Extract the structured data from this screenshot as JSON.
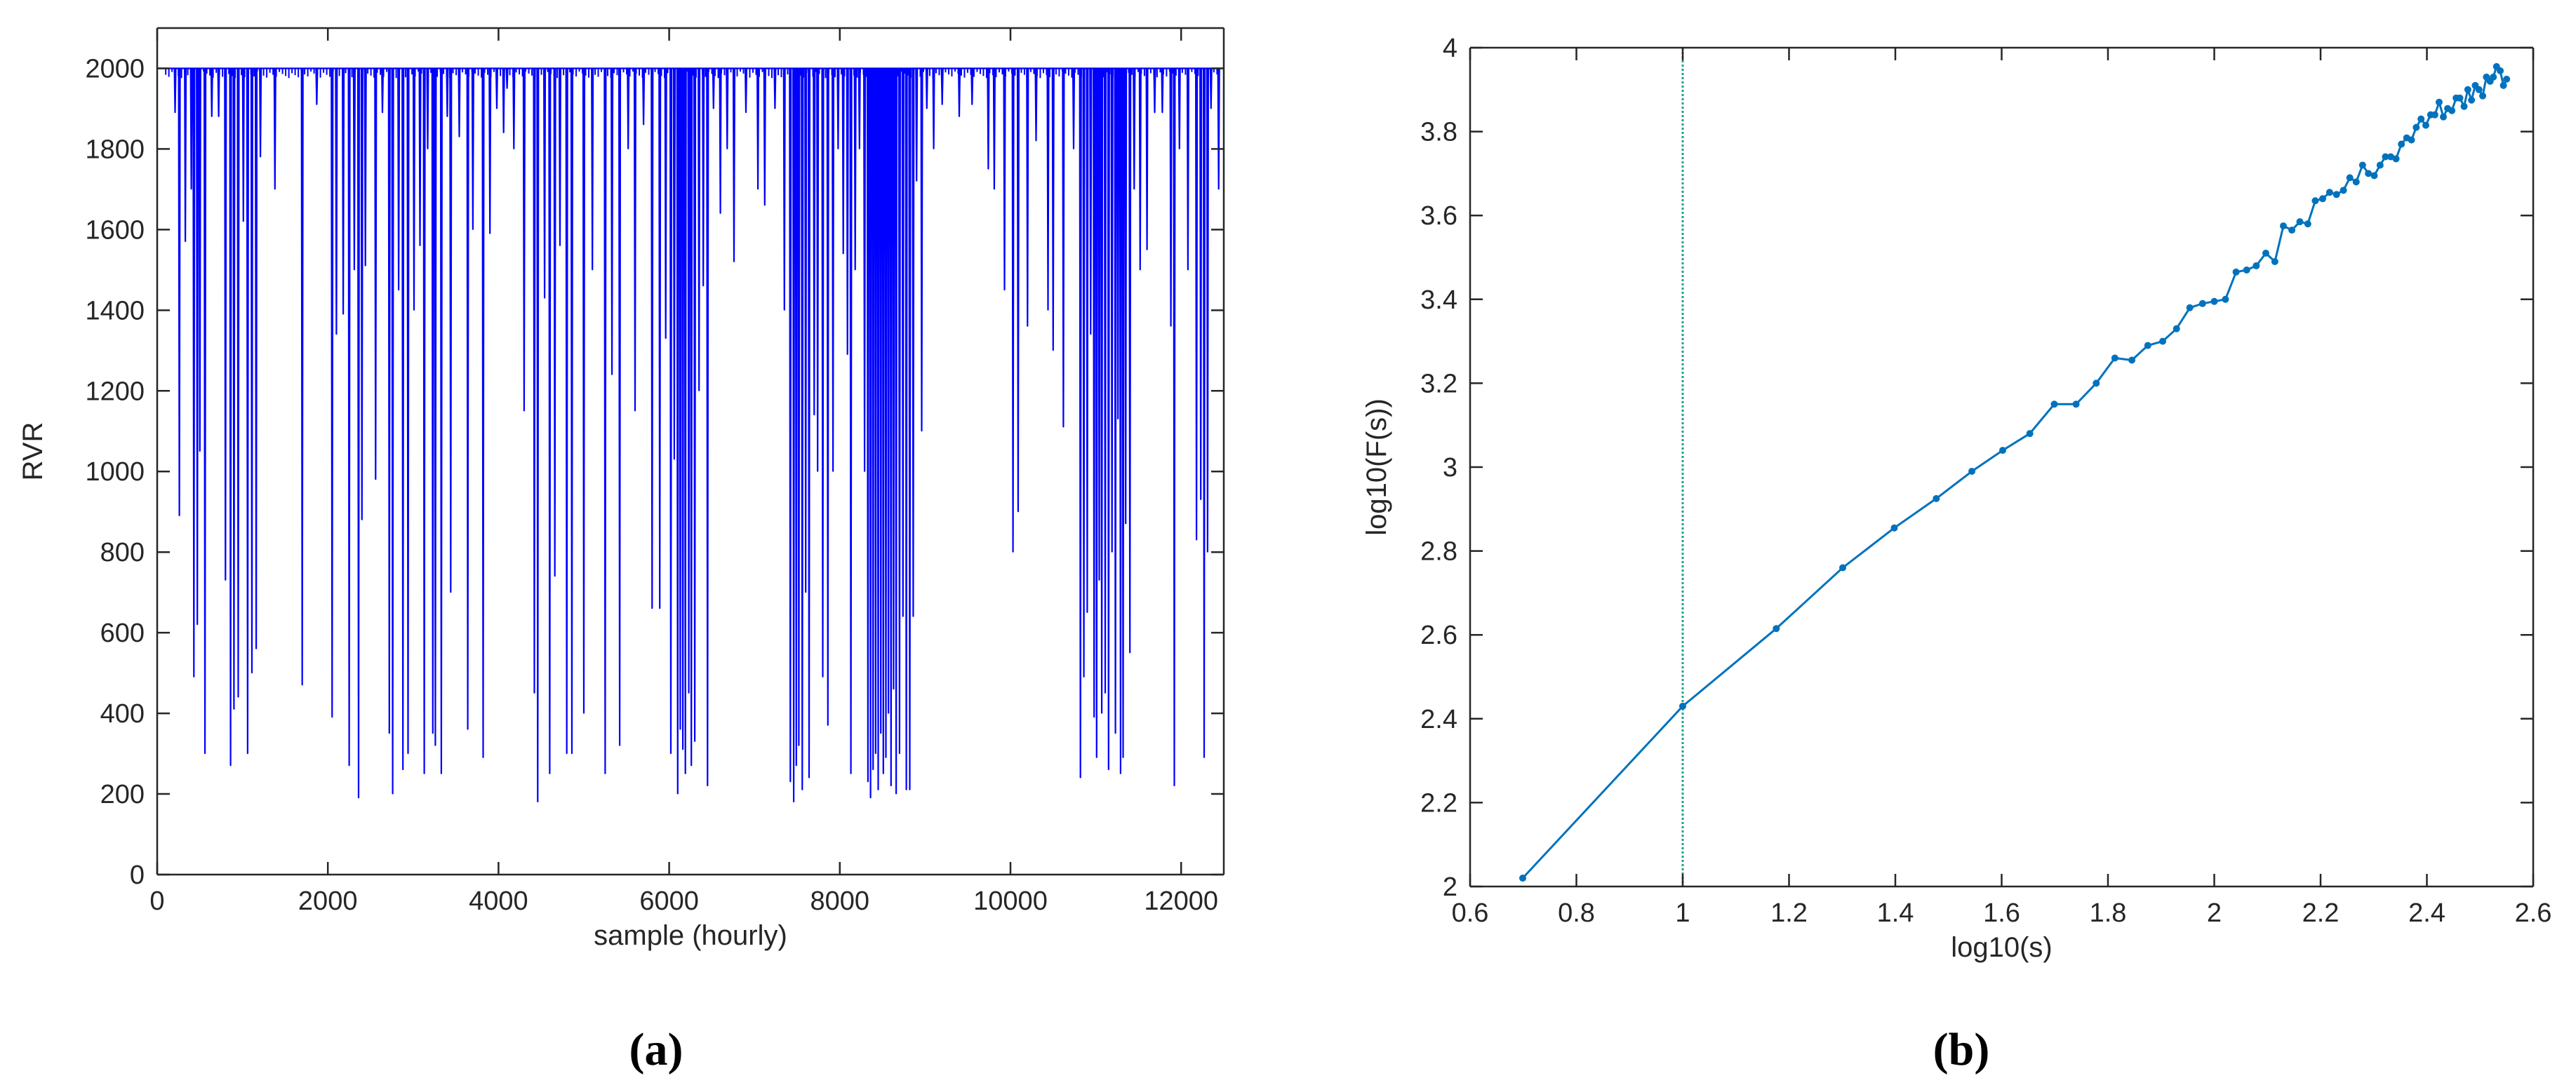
{
  "colors": {
    "axis": "#262626",
    "series_a": "#0000ff",
    "series_b": "#0072bd",
    "vline": "#1fa089"
  },
  "chart_data": [
    {
      "panel": "(a)",
      "type": "line",
      "xlabel": "sample (hourly)",
      "ylabel": "RVR",
      "xlim": [
        0,
        12500
      ],
      "ylim": [
        0,
        2100
      ],
      "xticks": [
        0,
        2000,
        4000,
        6000,
        8000,
        10000,
        12000
      ],
      "yticks": [
        0,
        200,
        400,
        600,
        800,
        1000,
        1200,
        1400,
        1600,
        1800,
        2000
      ],
      "grid": false,
      "baseline": 2000,
      "series": [
        {
          "dips": [
            [
              210,
              1890
            ],
            [
              260,
              890
            ],
            [
              330,
              1570
            ],
            [
              400,
              1700
            ],
            [
              430,
              490
            ],
            [
              470,
              620
            ],
            [
              500,
              1050
            ],
            [
              560,
              300
            ],
            [
              640,
              1880
            ],
            [
              720,
              1880
            ],
            [
              800,
              730
            ],
            [
              860,
              270
            ],
            [
              900,
              410
            ],
            [
              950,
              440
            ],
            [
              1010,
              1620
            ],
            [
              1060,
              300
            ],
            [
              1110,
              500
            ],
            [
              1160,
              560
            ],
            [
              1210,
              1780
            ],
            [
              1380,
              1700
            ],
            [
              1700,
              470
            ],
            [
              1870,
              1910
            ],
            [
              2050,
              390
            ],
            [
              2100,
              1340
            ],
            [
              2180,
              1390
            ],
            [
              2250,
              270
            ],
            [
              2310,
              1500
            ],
            [
              2360,
              190
            ],
            [
              2400,
              880
            ],
            [
              2440,
              1510
            ],
            [
              2560,
              980
            ],
            [
              2640,
              1890
            ],
            [
              2720,
              350
            ],
            [
              2760,
              200
            ],
            [
              2830,
              1450
            ],
            [
              2880,
              260
            ],
            [
              2940,
              300
            ],
            [
              3010,
              1400
            ],
            [
              3080,
              1560
            ],
            [
              3130,
              250
            ],
            [
              3170,
              1800
            ],
            [
              3230,
              350
            ],
            [
              3260,
              320
            ],
            [
              3330,
              250
            ],
            [
              3400,
              1880
            ],
            [
              3440,
              700
            ],
            [
              3540,
              1830
            ],
            [
              3640,
              360
            ],
            [
              3700,
              1600
            ],
            [
              3820,
              290
            ],
            [
              3900,
              1590
            ],
            [
              3980,
              1900
            ],
            [
              4060,
              1840
            ],
            [
              4100,
              1950
            ],
            [
              4180,
              1800
            ],
            [
              4300,
              1150
            ],
            [
              4420,
              450
            ],
            [
              4460,
              180
            ],
            [
              4540,
              1430
            ],
            [
              4600,
              250
            ],
            [
              4660,
              740
            ],
            [
              4720,
              1560
            ],
            [
              4800,
              300
            ],
            [
              4860,
              300
            ],
            [
              5000,
              400
            ],
            [
              5100,
              1500
            ],
            [
              5250,
              250
            ],
            [
              5330,
              1240
            ],
            [
              5420,
              320
            ],
            [
              5520,
              1800
            ],
            [
              5600,
              1150
            ],
            [
              5700,
              1860
            ],
            [
              5800,
              660
            ],
            [
              5890,
              660
            ],
            [
              5960,
              1330
            ],
            [
              6020,
              300
            ],
            [
              6060,
              1030
            ],
            [
              6100,
              200
            ],
            [
              6130,
              360
            ],
            [
              6160,
              310
            ],
            [
              6190,
              250
            ],
            [
              6230,
              450
            ],
            [
              6260,
              270
            ],
            [
              6300,
              330
            ],
            [
              6350,
              1200
            ],
            [
              6400,
              1460
            ],
            [
              6450,
              220
            ],
            [
              6520,
              1900
            ],
            [
              6600,
              1640
            ],
            [
              6680,
              1800
            ],
            [
              6760,
              1520
            ],
            [
              6900,
              1890
            ],
            [
              7040,
              1700
            ],
            [
              7120,
              1660
            ],
            [
              7240,
              1900
            ],
            [
              7350,
              1400
            ],
            [
              7420,
              230
            ],
            [
              7460,
              180
            ],
            [
              7490,
              270
            ],
            [
              7520,
              320
            ],
            [
              7560,
              210
            ],
            [
              7600,
              700
            ],
            [
              7640,
              240
            ],
            [
              7700,
              1140
            ],
            [
              7740,
              1000
            ],
            [
              7800,
              490
            ],
            [
              7860,
              370
            ],
            [
              7920,
              1000
            ],
            [
              7980,
              1800
            ],
            [
              8040,
              1540
            ],
            [
              8090,
              1290
            ],
            [
              8130,
              250
            ],
            [
              8180,
              1500
            ],
            [
              8230,
              1800
            ],
            [
              8290,
              1000
            ],
            [
              8330,
              230
            ],
            [
              8360,
              190
            ],
            [
              8390,
              260
            ],
            [
              8420,
              300
            ],
            [
              8450,
              210
            ],
            [
              8480,
              350
            ],
            [
              8510,
              250
            ],
            [
              8540,
              290
            ],
            [
              8570,
              400
            ],
            [
              8600,
              220
            ],
            [
              8630,
              460
            ],
            [
              8660,
              200
            ],
            [
              8700,
              300
            ],
            [
              8740,
              640
            ],
            [
              8780,
              210
            ],
            [
              8820,
              210
            ],
            [
              8860,
              640
            ],
            [
              8900,
              1720
            ],
            [
              8960,
              1100
            ],
            [
              9020,
              1900
            ],
            [
              9100,
              1800
            ],
            [
              9200,
              1910
            ],
            [
              9400,
              1880
            ],
            [
              9550,
              1910
            ],
            [
              9740,
              1750
            ],
            [
              9810,
              1700
            ],
            [
              9930,
              1450
            ],
            [
              10030,
              800
            ],
            [
              10090,
              900
            ],
            [
              10200,
              1360
            ],
            [
              10300,
              1820
            ],
            [
              10440,
              1400
            ],
            [
              10500,
              1300
            ],
            [
              10620,
              1110
            ],
            [
              10740,
              1800
            ],
            [
              10820,
              240
            ],
            [
              10860,
              490
            ],
            [
              10900,
              650
            ],
            [
              10940,
              1340
            ],
            [
              10980,
              390
            ],
            [
              11010,
              290
            ],
            [
              11040,
              730
            ],
            [
              11070,
              400
            ],
            [
              11110,
              450
            ],
            [
              11150,
              260
            ],
            [
              11190,
              800
            ],
            [
              11230,
              350
            ],
            [
              11260,
              1130
            ],
            [
              11290,
              250
            ],
            [
              11320,
              290
            ],
            [
              11350,
              870
            ],
            [
              11400,
              550
            ],
            [
              11450,
              1700
            ],
            [
              11520,
              1500
            ],
            [
              11600,
              1550
            ],
            [
              11690,
              1890
            ],
            [
              11780,
              1890
            ],
            [
              11880,
              1360
            ],
            [
              11920,
              220
            ],
            [
              11980,
              1800
            ],
            [
              12080,
              1500
            ],
            [
              12180,
              830
            ],
            [
              12230,
              930
            ],
            [
              12270,
              290
            ],
            [
              12310,
              800
            ],
            [
              12350,
              1900
            ],
            [
              12440,
              1700
            ]
          ]
        }
      ]
    },
    {
      "panel": "(b)",
      "type": "line",
      "xlabel": "log10(s)",
      "ylabel": "log10(F(s))",
      "xlim": [
        0.6,
        2.6
      ],
      "ylim": [
        2,
        4
      ],
      "xticks": [
        "0.6",
        "0.8",
        "1",
        "1.2",
        "1.4",
        "1.6",
        "1.8",
        "2",
        "2.2",
        "2.4",
        "2.6"
      ],
      "yticks": [
        "2",
        "2.2",
        "2.4",
        "2.6",
        "2.8",
        "3",
        "3.2",
        "3.4",
        "3.6",
        "3.8",
        "4"
      ],
      "grid": false,
      "vline_x": 1.0,
      "series": [
        {
          "points": [
            [
              0.699,
              2.02
            ],
            [
              1.0,
              2.43
            ],
            [
              1.176,
              2.615
            ],
            [
              1.301,
              2.76
            ],
            [
              1.398,
              2.855
            ],
            [
              1.477,
              2.925
            ],
            [
              1.544,
              2.99
            ],
            [
              1.602,
              3.04
            ],
            [
              1.653,
              3.08
            ],
            [
              1.699,
              3.15
            ],
            [
              1.74,
              3.15
            ],
            [
              1.778,
              3.2
            ],
            [
              1.813,
              3.26
            ],
            [
              1.845,
              3.255
            ],
            [
              1.875,
              3.29
            ],
            [
              1.903,
              3.3
            ],
            [
              1.929,
              3.33
            ],
            [
              1.954,
              3.38
            ],
            [
              1.978,
              3.39
            ],
            [
              2.0,
              3.395
            ],
            [
              2.021,
              3.4
            ],
            [
              2.041,
              3.465
            ],
            [
              2.061,
              3.47
            ],
            [
              2.079,
              3.48
            ],
            [
              2.097,
              3.51
            ],
            [
              2.114,
              3.49
            ],
            [
              2.13,
              3.575
            ],
            [
              2.146,
              3.565
            ],
            [
              2.161,
              3.585
            ],
            [
              2.176,
              3.58
            ],
            [
              2.19,
              3.635
            ],
            [
              2.204,
              3.64
            ],
            [
              2.217,
              3.655
            ],
            [
              2.23,
              3.65
            ],
            [
              2.243,
              3.66
            ],
            [
              2.255,
              3.69
            ],
            [
              2.267,
              3.68
            ],
            [
              2.279,
              3.72
            ],
            [
              2.29,
              3.7
            ],
            [
              2.301,
              3.695
            ],
            [
              2.312,
              3.72
            ],
            [
              2.322,
              3.74
            ],
            [
              2.332,
              3.74
            ],
            [
              2.342,
              3.735
            ],
            [
              2.352,
              3.77
            ],
            [
              2.362,
              3.785
            ],
            [
              2.371,
              3.78
            ],
            [
              2.38,
              3.81
            ],
            [
              2.389,
              3.83
            ],
            [
              2.398,
              3.815
            ],
            [
              2.407,
              3.84
            ],
            [
              2.415,
              3.84
            ],
            [
              2.423,
              3.87
            ],
            [
              2.431,
              3.835
            ],
            [
              2.439,
              3.855
            ],
            [
              2.447,
              3.85
            ],
            [
              2.455,
              3.88
            ],
            [
              2.462,
              3.88
            ],
            [
              2.47,
              3.86
            ],
            [
              2.477,
              3.9
            ],
            [
              2.484,
              3.875
            ],
            [
              2.491,
              3.91
            ],
            [
              2.498,
              3.9
            ],
            [
              2.505,
              3.885
            ],
            [
              2.512,
              3.93
            ],
            [
              2.519,
              3.92
            ],
            [
              2.525,
              3.93
            ],
            [
              2.531,
              3.955
            ],
            [
              2.538,
              3.945
            ],
            [
              2.544,
              3.91
            ],
            [
              2.55,
              3.925
            ]
          ]
        }
      ]
    }
  ],
  "captions": {
    "a": "(a)",
    "b": "(b)"
  }
}
